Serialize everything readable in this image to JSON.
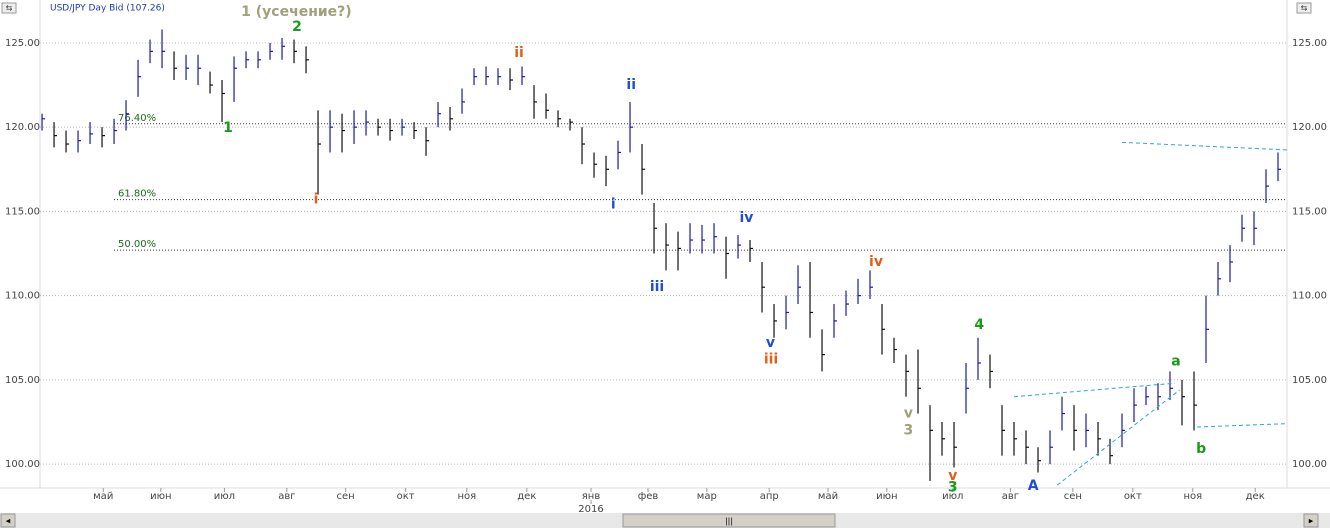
{
  "chart_data": {
    "type": "ohlc",
    "title": "USD/JPY Day Bid (107.26)",
    "up_color": "#1a1aa8",
    "down_color": "#111111",
    "high": [
      120.8,
      120.3,
      119.8,
      119.8,
      120.3,
      120,
      120.5,
      121.6,
      124,
      125.2,
      125.8,
      124.5,
      124.3,
      124.3,
      123.3,
      122.8,
      124.2,
      124.5,
      124.5,
      125,
      125.3,
      125.2,
      124.8,
      121,
      121,
      120.8,
      121,
      121,
      120.5,
      120.5,
      120.5,
      120.3,
      120,
      121.5,
      121.2,
      122.3,
      123.5,
      123.6,
      123.5,
      123.5,
      123.6,
      122.5,
      122,
      121,
      120.5,
      120,
      118.5,
      118.3,
      119.2,
      121.5,
      119,
      115.5,
      114.3,
      113.8,
      114.3,
      114.2,
      114.3,
      113.5,
      113.6,
      113.3,
      112,
      109.5,
      110,
      111.8,
      112,
      108,
      109.5,
      110.3,
      111,
      111.5,
      109.5,
      107.5,
      106.5,
      106.8,
      103.5,
      102.5,
      102.5,
      106,
      107.5,
      106.5,
      103.5,
      102.5,
      102,
      101,
      102,
      104,
      103.5,
      103,
      102.5,
      101.5,
      103,
      104.5,
      104.6,
      104.8,
      105.5,
      105,
      105.5,
      110,
      112,
      113,
      114.8,
      115,
      117.5,
      118.5
    ],
    "low": [
      119.8,
      118.8,
      118.5,
      118.5,
      119,
      118.8,
      119,
      119.8,
      121.8,
      123.8,
      123.5,
      122.8,
      122.8,
      122.5,
      122,
      120.3,
      121.5,
      123.5,
      123.5,
      124,
      124,
      123.8,
      123.2,
      116,
      118.5,
      118.5,
      119,
      119.5,
      119.5,
      119.2,
      119.5,
      119.3,
      118.3,
      120,
      119.8,
      120.8,
      122.5,
      122.5,
      122.5,
      122.2,
      122.5,
      120.5,
      120.5,
      120,
      119.8,
      117.8,
      117,
      116.5,
      117.5,
      118.5,
      116,
      112.5,
      111.5,
      111.5,
      112.5,
      112.5,
      112.5,
      111,
      112.2,
      112,
      109,
      107.5,
      108,
      109.5,
      107.5,
      105.5,
      107.5,
      108.8,
      109.5,
      109.8,
      106.5,
      106,
      104,
      103,
      99,
      100.5,
      99.8,
      103,
      105,
      104.5,
      100.5,
      100.5,
      100,
      99.5,
      100,
      102,
      100.8,
      101,
      100.5,
      100,
      101,
      102.5,
      103.5,
      103.2,
      103.8,
      102.3,
      102,
      106,
      110,
      110.8,
      113.2,
      113,
      115.5,
      116.8
    ],
    "close": [
      120.5,
      119.5,
      119,
      119.2,
      119.6,
      119.5,
      119.8,
      120.8,
      123,
      124.5,
      124.5,
      123.5,
      123.5,
      123.5,
      122.5,
      122,
      123.5,
      124,
      124,
      124.5,
      124.8,
      124.5,
      124,
      119,
      120,
      119.8,
      120,
      120.3,
      120,
      119.8,
      120,
      119.8,
      119.2,
      120.8,
      120.5,
      121.5,
      123,
      123,
      123,
      122.8,
      123,
      121.5,
      121,
      120.5,
      120.3,
      119,
      117.8,
      117.5,
      118.5,
      120,
      117.5,
      114,
      113,
      112.8,
      113.3,
      113.3,
      113.5,
      112.5,
      113,
      112.8,
      110.5,
      108.5,
      109,
      110.5,
      109,
      106.5,
      108.5,
      109.5,
      110,
      110.5,
      108,
      106.8,
      105.5,
      104.5,
      102,
      101.5,
      101,
      104.5,
      106,
      105.5,
      102,
      101.5,
      101,
      100.2,
      101,
      103,
      102,
      102,
      101.5,
      100.5,
      102,
      103.5,
      104,
      104,
      104.5,
      104,
      103.5,
      108,
      111,
      112,
      114,
      114,
      116.5,
      117.5
    ],
    "xlim": [
      -0.17,
      103.75
    ],
    "ylim": [
      98.58,
      127.55
    ],
    "yticks": [
      {
        "value": 125,
        "label": "125.00"
      },
      {
        "value": 120,
        "label": "120.00"
      },
      {
        "value": 115,
        "label": "115.00"
      },
      {
        "value": 110,
        "label": "110.00"
      },
      {
        "value": 105,
        "label": "105.00"
      },
      {
        "value": 100,
        "label": "100.00"
      }
    ],
    "xticks": [
      {
        "value": 5.1,
        "label": "май"
      },
      {
        "value": 9.9,
        "label": "июн"
      },
      {
        "value": 15.2,
        "label": "июл"
      },
      {
        "value": 20.4,
        "label": "авг"
      },
      {
        "value": 25.3,
        "label": "сен"
      },
      {
        "value": 30.3,
        "label": "окт"
      },
      {
        "value": 35.4,
        "label": "ноя"
      },
      {
        "value": 40.4,
        "label": "дек"
      },
      {
        "value": 45.75,
        "label": "янв"
      },
      {
        "value": 50.5,
        "label": "фев"
      },
      {
        "value": 55.4,
        "label": "мар"
      },
      {
        "value": 60.6,
        "label": "апр"
      },
      {
        "value": 65.5,
        "label": "май"
      },
      {
        "value": 70.4,
        "label": "июн"
      },
      {
        "value": 75.9,
        "label": "июл"
      },
      {
        "value": 80.7,
        "label": "авг"
      },
      {
        "value": 85.9,
        "label": "сен"
      },
      {
        "value": 90.9,
        "label": "окт"
      },
      {
        "value": 95.9,
        "label": "ноя"
      },
      {
        "value": 101.1,
        "label": "дек"
      }
    ],
    "year_label": {
      "value": 45.75,
      "label": "2016"
    },
    "grid": true,
    "fib_levels": [
      {
        "value": 120.2,
        "label": "76.40%"
      },
      {
        "value": 115.7,
        "label": "61.80%"
      },
      {
        "value": 112.7,
        "label": "50.00%"
      }
    ],
    "fib_start": 6,
    "annotations": [
      {
        "text": "1 (усечение?)",
        "x": 21.2,
        "y": 126.84,
        "color": "#a0a07a"
      },
      {
        "text": "2",
        "x": 21.25,
        "y": 125.95,
        "color": "#1a9a1a"
      },
      {
        "text": "1",
        "x": 15.5,
        "y": 119.95,
        "color": "#1a9a1a"
      },
      {
        "text": "i",
        "x": 22.83,
        "y": 115.7,
        "color": "#e0601a"
      },
      {
        "text": "ii",
        "x": 39.75,
        "y": 124.4,
        "color": "#e0601a"
      },
      {
        "text": "ii",
        "x": 49.1,
        "y": 122.5,
        "color": "#1f4fd6"
      },
      {
        "text": "i",
        "x": 47.6,
        "y": 115.4,
        "color": "#1f4fd6"
      },
      {
        "text": "iii",
        "x": 51.25,
        "y": 110.5,
        "color": "#1f4fd6"
      },
      {
        "text": "iv",
        "x": 58.7,
        "y": 114.6,
        "color": "#1f4fd6"
      },
      {
        "text": "v",
        "x": 60.7,
        "y": 107.2,
        "color": "#1f4fd6"
      },
      {
        "text": "iii",
        "x": 60.75,
        "y": 106.2,
        "color": "#e0601a"
      },
      {
        "text": "iv",
        "x": 69.5,
        "y": 112.0,
        "color": "#e0601a"
      },
      {
        "text": "v",
        "x": 72.2,
        "y": 103.0,
        "color": "#a0a07a"
      },
      {
        "text": "3",
        "x": 72.2,
        "y": 102.0,
        "color": "#a0a07a"
      },
      {
        "text": "4",
        "x": 78.1,
        "y": 108.25,
        "color": "#1a9a1a"
      },
      {
        "text": "v",
        "x": 75.9,
        "y": 99.3,
        "color": "#e0601a"
      },
      {
        "text": "3",
        "x": 75.9,
        "y": 98.6,
        "color": "#1a9a1a"
      },
      {
        "text": "A",
        "x": 82.6,
        "y": 98.7,
        "color": "#1f4fd6"
      },
      {
        "text": "a",
        "x": 94.5,
        "y": 106.1,
        "color": "#1a9a1a"
      },
      {
        "text": "b",
        "x": 96.6,
        "y": 100.9,
        "color": "#1a9a1a"
      }
    ],
    "trend_lines": [
      {
        "x": [
          81,
          94.4
        ],
        "y": [
          104.0,
          104.8
        ]
      },
      {
        "x": [
          84.6,
          94.8
        ],
        "y": [
          98.75,
          104.4
        ]
      },
      {
        "x": [
          90,
          103.75
        ],
        "y": [
          119.1,
          118.65
        ]
      },
      {
        "x": [
          96.25,
          103.75
        ],
        "y": [
          102.2,
          102.4
        ]
      }
    ],
    "trend_color": "#2aa6d6"
  }
}
